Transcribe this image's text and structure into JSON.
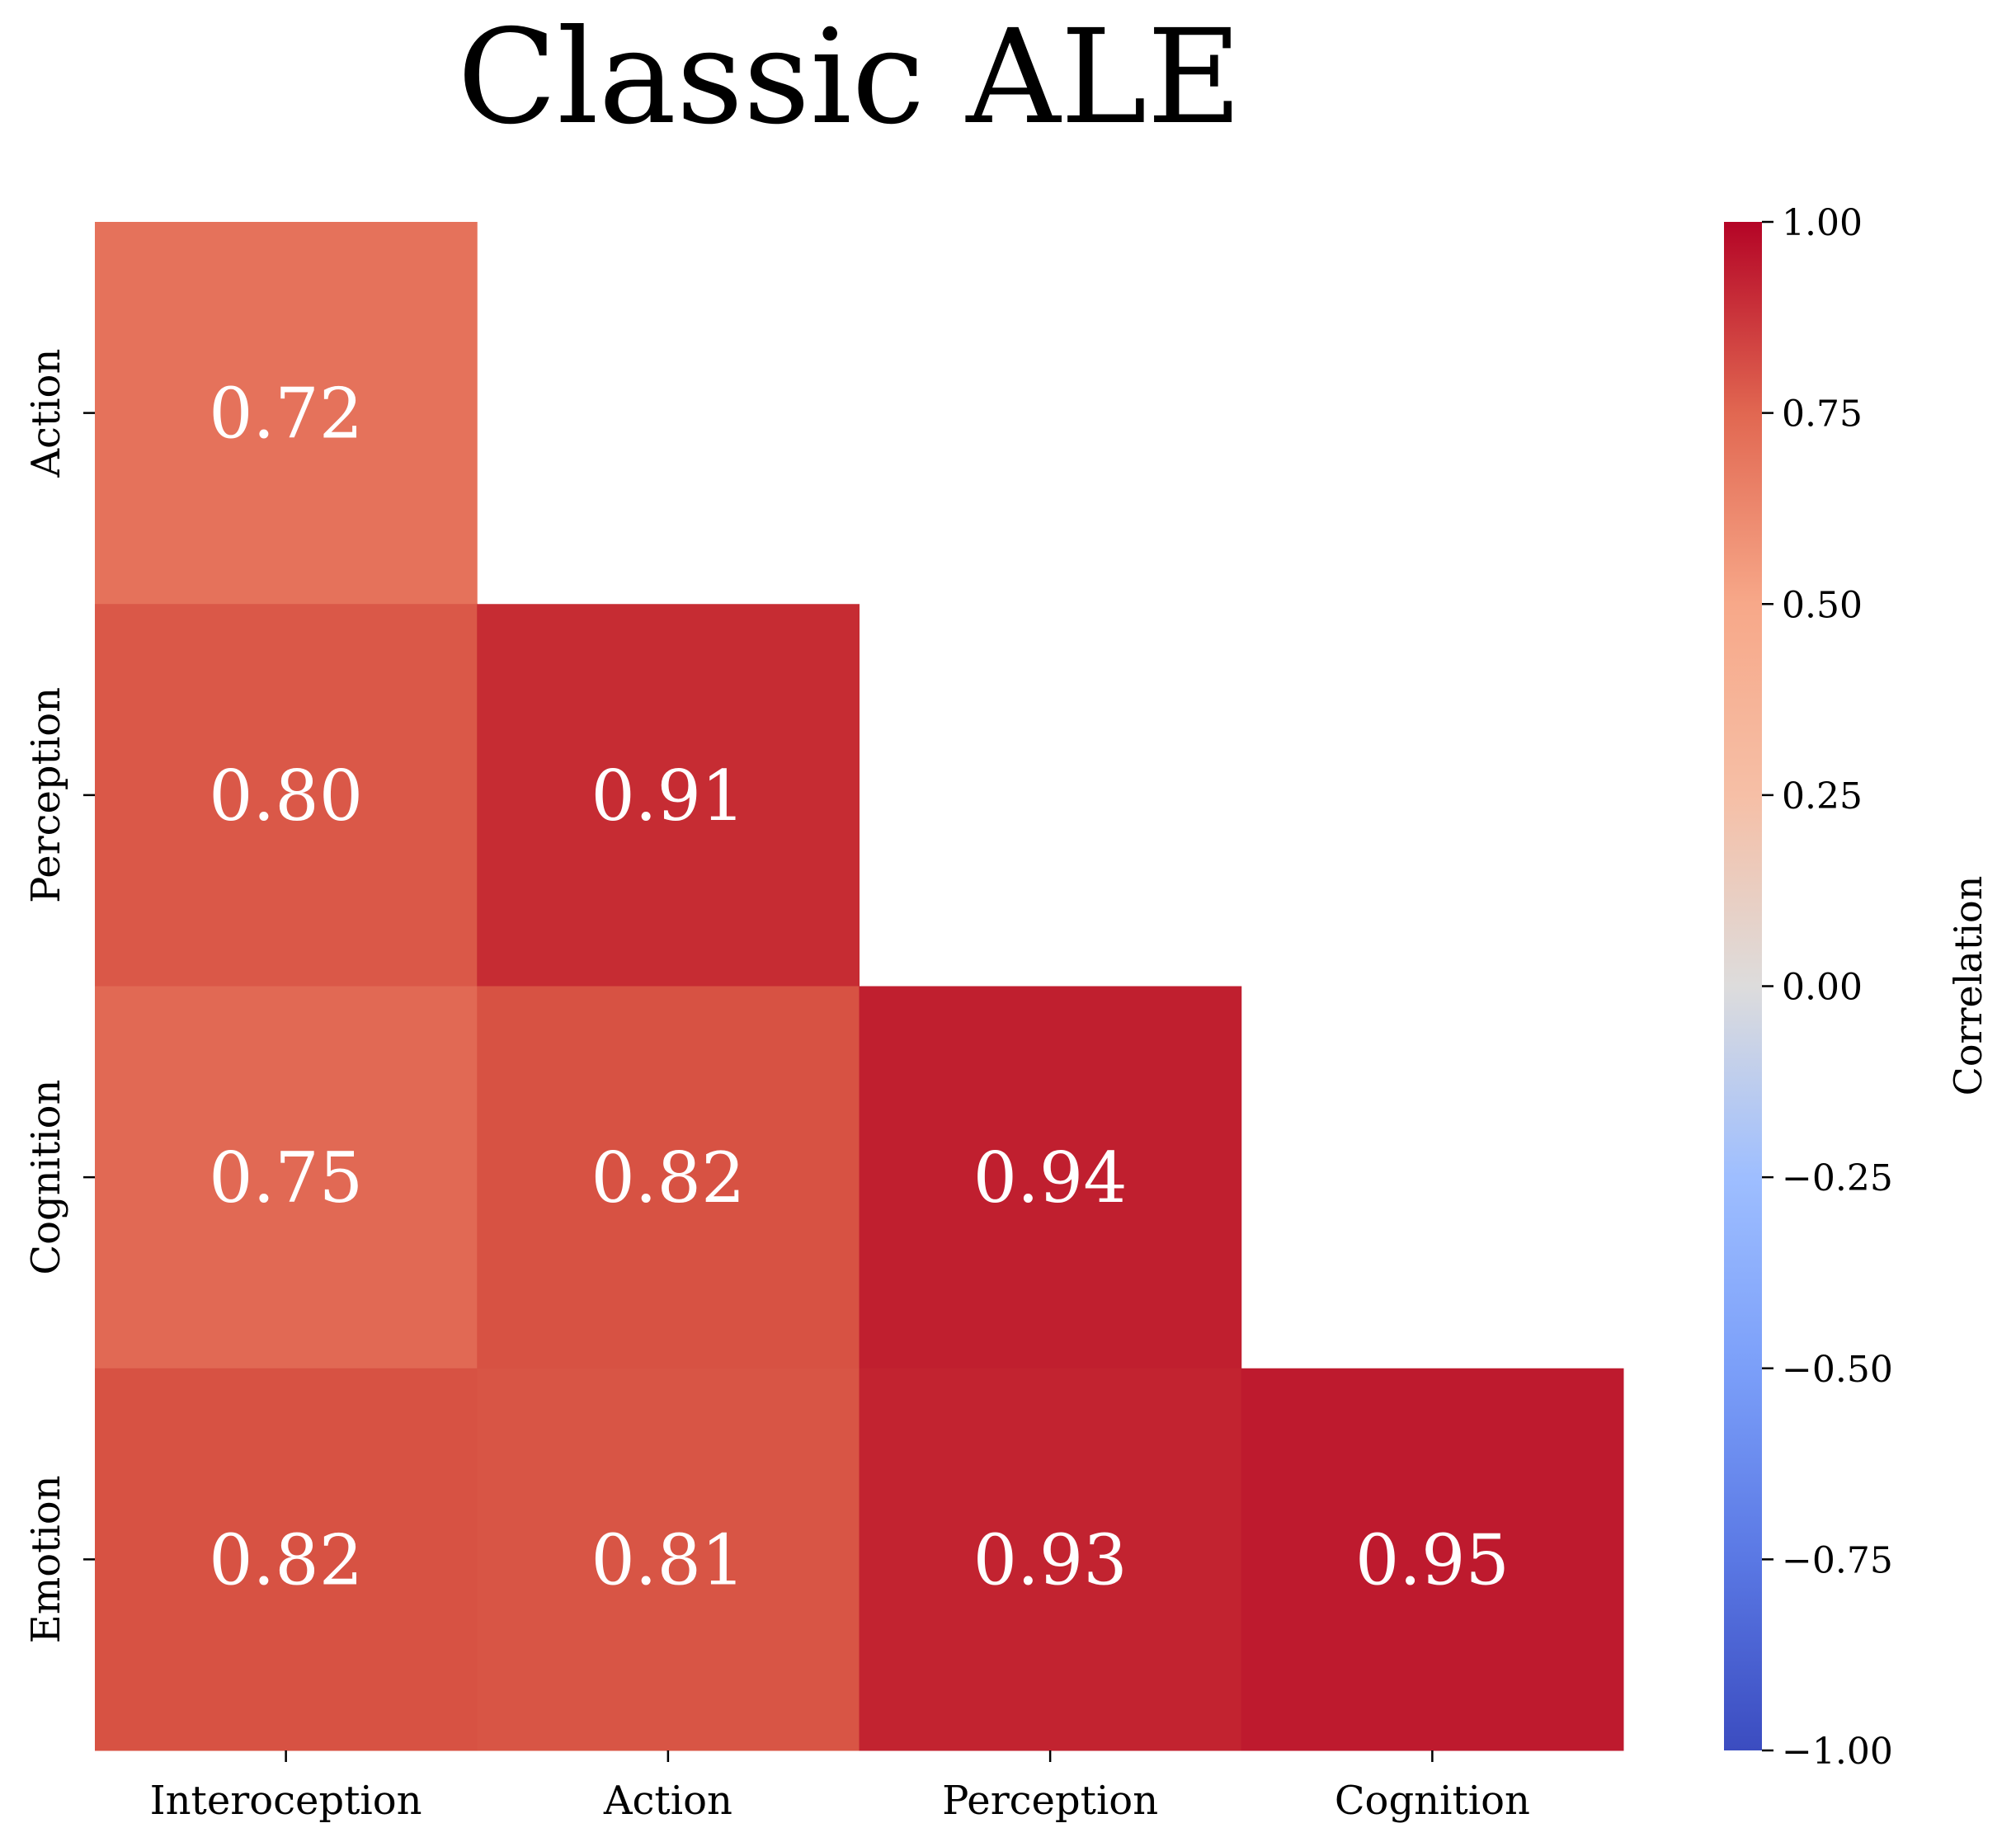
{
  "chart_data": {
    "type": "heatmap",
    "title": "Classic ALE",
    "x_labels": [
      "Interoception",
      "Action",
      "Perception",
      "Cognition"
    ],
    "y_labels": [
      "Action",
      "Perception",
      "Cognition",
      "Emotion"
    ],
    "values": [
      [
        0.72,
        null,
        null,
        null
      ],
      [
        0.8,
        0.91,
        null,
        null
      ],
      [
        0.75,
        0.82,
        0.94,
        null
      ],
      [
        0.82,
        0.81,
        0.93,
        0.95
      ]
    ],
    "value_labels": [
      [
        "0.72",
        "",
        "",
        ""
      ],
      [
        "0.80",
        "0.91",
        "",
        ""
      ],
      [
        "0.75",
        "0.82",
        "0.94",
        ""
      ],
      [
        "0.82",
        "0.81",
        "0.93",
        "0.95"
      ]
    ],
    "colorbar": {
      "label": "Correlation",
      "range": [
        -1,
        1
      ],
      "colormap": "coolwarm",
      "ticks": [
        1.0,
        0.75,
        0.5,
        0.25,
        0.0,
        -0.25,
        -0.5,
        -0.75,
        -1.0
      ],
      "tick_labels": [
        "1.00",
        "0.75",
        "0.50",
        "0.25",
        "0.00",
        "−0.25",
        "−0.50",
        "−0.75",
        "−1.00"
      ]
    },
    "cell_text_color": "#ffffff"
  }
}
